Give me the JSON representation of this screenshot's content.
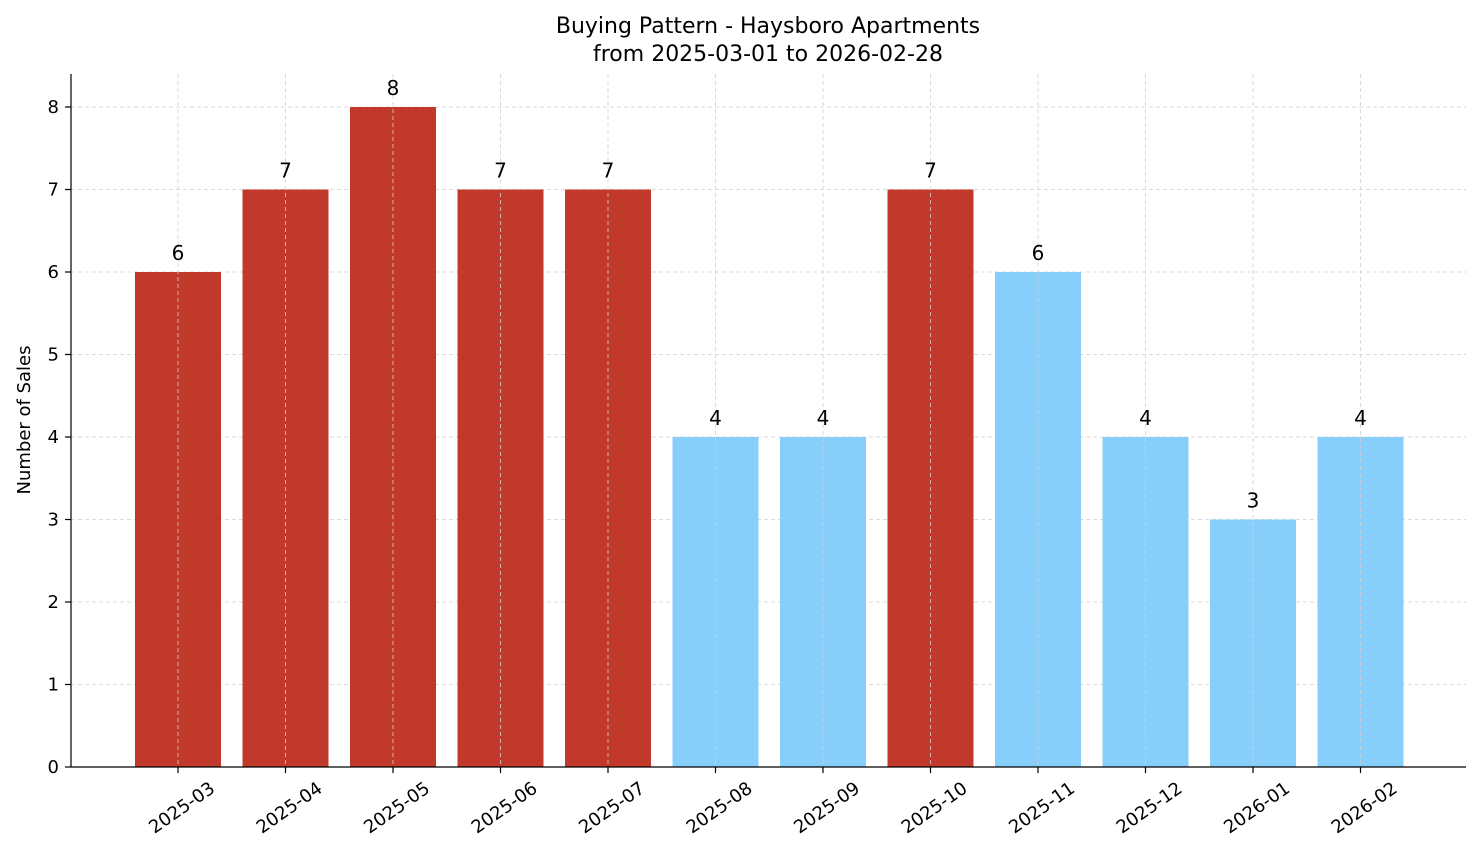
{
  "chart_data": {
    "type": "bar",
    "title": "Buying Pattern - Haysboro Apartments",
    "subtitle": "from 2025-03-01 to 2026-02-28",
    "xlabel": "",
    "ylabel": "Number of Sales",
    "ylim": [
      0,
      8.4
    ],
    "yticks": [
      0,
      1,
      2,
      3,
      4,
      5,
      6,
      7,
      8
    ],
    "grid": true,
    "categories": [
      "2025-03",
      "2025-04",
      "2025-05",
      "2025-06",
      "2025-07",
      "2025-08",
      "2025-09",
      "2025-10",
      "2025-11",
      "2025-12",
      "2026-01",
      "2026-02"
    ],
    "values": [
      6,
      7,
      8,
      7,
      7,
      4,
      4,
      7,
      6,
      4,
      3,
      4
    ],
    "bar_colors": [
      "#c0392b",
      "#c0392b",
      "#c0392b",
      "#c0392b",
      "#c0392b",
      "#87cefa",
      "#87cefa",
      "#c0392b",
      "#87cefa",
      "#87cefa",
      "#87cefa",
      "#87cefa"
    ]
  }
}
